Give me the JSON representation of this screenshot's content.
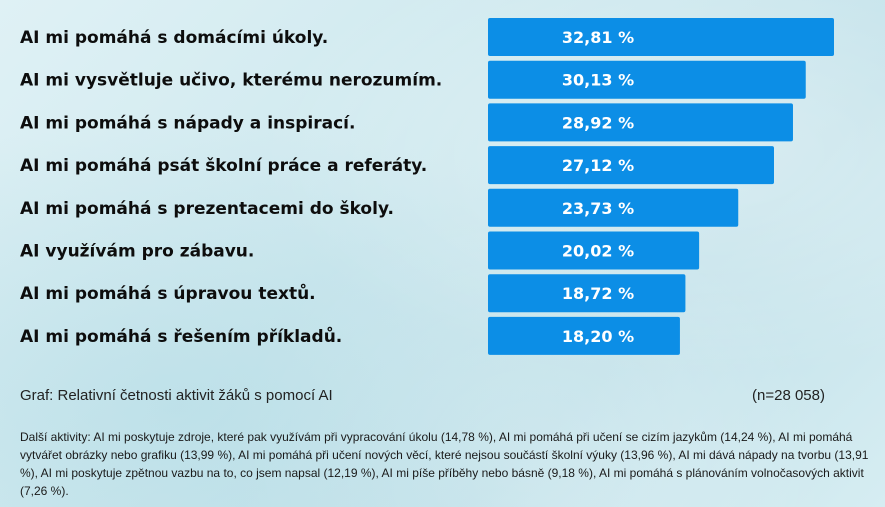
{
  "chart_data": {
    "type": "bar",
    "orientation": "horizontal",
    "categories": [
      "AI mi pomáhá s domácími úkoly.",
      "AI mi vysvětluje učivo, kterému nerozumím.",
      "AI mi pomáhá s nápady a inspirací.",
      "AI mi pomáhá psát školní práce a referáty.",
      "AI mi pomáhá s prezentacemi do školy.",
      "AI využívám pro zábavu.",
      "AI mi pomáhá s úpravou textů.",
      "AI mi pomáhá s řešením příkladů."
    ],
    "values": [
      32.81,
      30.13,
      28.92,
      27.12,
      23.73,
      20.02,
      18.72,
      18.2
    ],
    "value_labels": [
      "32,81 %",
      "30,13 %",
      "28,92 %",
      "27,12 %",
      "23,73 %",
      "20,02 %",
      "18,72 %",
      "18,20 %"
    ],
    "bar_color": "#0c8ee6",
    "title": "",
    "xlabel": "",
    "ylabel": "",
    "grid": false,
    "legend": "none"
  },
  "caption": {
    "text": "Graf: Relativní četnosti aktivit žáků s pomocí AI",
    "sample_size": "(n=28 058)"
  },
  "footnote": "Další aktivity: AI mi poskytuje zdroje, které pak využívám při vypracování úkolu (14,78 %), AI mi pomáhá při učení se cizím jazykům (14,24 %), AI mi pomáhá vytvářet obrázky nebo grafiku (13,99 %), AI mi pomáhá při učení nových věcí, které nejsou součástí školní výuky (13,96 %), AI mi dává nápady na tvorbu (13,91 %), AI mi poskytuje zpětnou vazbu na to, co jsem napsal (12,19 %), AI mi píše příběhy nebo básně (9,18 %), AI mi pomáhá s plánováním volnočasových aktivit (7,26 %)."
}
